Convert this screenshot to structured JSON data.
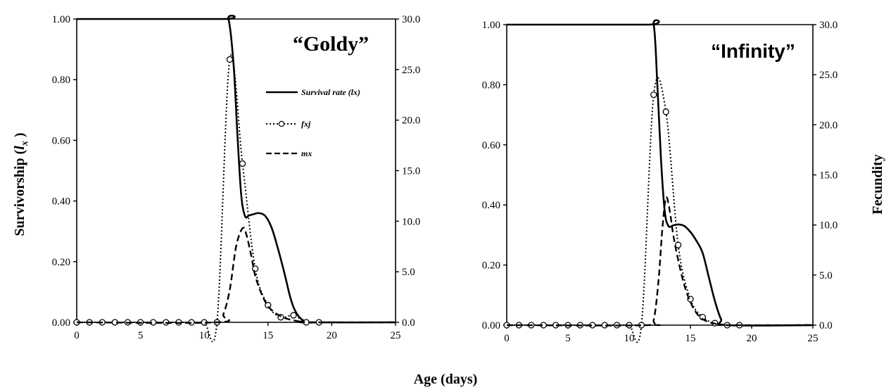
{
  "figure": {
    "xlabel": "Age (days)",
    "ylabel_left_main": "Survivorship (",
    "ylabel_left_sym": "l",
    "ylabel_left_sub": "x",
    "ylabel_left_end": " )",
    "ylabel_right": "Fecundity"
  },
  "legend": {
    "lx": "Survival rate (lx)",
    "fxj": "fxj",
    "mx": "mx"
  },
  "chart_data": [
    {
      "type": "line",
      "title": "“Goldy”",
      "xlim": [
        0,
        25
      ],
      "xticks": [
        "0",
        "5",
        "10",
        "15",
        "20",
        "25"
      ],
      "ylim_left": [
        0,
        1.0
      ],
      "yticks_left": [
        "0.00",
        "0.20",
        "0.40",
        "0.60",
        "0.80",
        "1.00"
      ],
      "ylim_right": [
        0,
        30
      ],
      "yticks_right": [
        "0.0",
        "5.0",
        "10.0",
        "15.0",
        "20.0",
        "25.0",
        "30.0"
      ],
      "series": [
        {
          "name": "Survival rate (lx)",
          "axis": "left",
          "style": "solid",
          "x": [
            0,
            11.4,
            11.9,
            12.3,
            12.6,
            12.9,
            13.2,
            13.5,
            13.9,
            14.3,
            14.8,
            15.3,
            15.8,
            16.3,
            16.7,
            17.0,
            17.4,
            17.8,
            18.0,
            25
          ],
          "y": [
            1.0,
            1.0,
            1.0,
            0.85,
            0.62,
            0.42,
            0.35,
            0.352,
            0.357,
            0.36,
            0.35,
            0.31,
            0.24,
            0.16,
            0.09,
            0.05,
            0.02,
            0.005,
            0.0,
            0.0
          ]
        },
        {
          "name": "fxj",
          "axis": "right",
          "style": "dotted",
          "x": [
            0,
            1,
            2,
            3,
            4,
            5,
            6,
            7,
            8,
            9,
            10,
            11,
            12,
            13,
            14,
            15,
            16,
            17,
            18,
            19
          ],
          "y": [
            0,
            0,
            0,
            0,
            0,
            0,
            0,
            0,
            0,
            0,
            0,
            0,
            26.0,
            15.7,
            5.3,
            1.7,
            0.5,
            0.7,
            0,
            0
          ]
        },
        {
          "name": "mx",
          "axis": "right",
          "style": "dashed",
          "x": [
            0,
            11.0,
            11.5,
            12.0,
            12.5,
            13.0,
            13.3,
            13.7,
            14.0,
            14.5,
            15.0,
            15.5,
            16.0,
            16.5,
            17.0,
            17.5,
            18.0,
            25
          ],
          "y": [
            0,
            0,
            0.8,
            3.2,
            7.5,
            9.3,
            8.7,
            6.5,
            4.6,
            2.8,
            1.6,
            1.0,
            0.6,
            0.35,
            0.2,
            0.08,
            0,
            0
          ]
        }
      ]
    },
    {
      "type": "line",
      "title": "“Infinity”",
      "xlim": [
        0,
        25
      ],
      "xticks": [
        "0",
        "5",
        "10",
        "15",
        "20",
        "25"
      ],
      "ylim_left": [
        0,
        1.0
      ],
      "yticks_left": [
        "0.00",
        "0.20",
        "0.40",
        "0.60",
        "0.80",
        "1.00"
      ],
      "ylim_right": [
        0,
        30
      ],
      "yticks_right": [
        "0.0",
        "5.0",
        "10.0",
        "15.0",
        "20.0",
        "25.0",
        "30.0"
      ],
      "series": [
        {
          "name": "Survival rate (lx)",
          "axis": "left",
          "style": "solid",
          "x": [
            0,
            11.4,
            12.0,
            12.3,
            12.6,
            12.9,
            13.2,
            13.6,
            14.0,
            14.5,
            15.0,
            15.5,
            16.0,
            16.5,
            17.0,
            17.5,
            18.0,
            25
          ],
          "y": [
            1.0,
            1.0,
            1.0,
            0.8,
            0.55,
            0.38,
            0.33,
            0.332,
            0.335,
            0.33,
            0.31,
            0.28,
            0.24,
            0.16,
            0.08,
            0.02,
            0.0,
            0.0
          ]
        },
        {
          "name": "fxj",
          "axis": "right",
          "style": "dotted",
          "x": [
            0,
            1,
            2,
            3,
            4,
            5,
            6,
            7,
            8,
            9,
            10,
            11,
            12,
            13,
            14,
            15,
            16,
            17,
            18,
            19
          ],
          "y": [
            0,
            0,
            0,
            0,
            0,
            0,
            0,
            0,
            0,
            0,
            0,
            0,
            23.0,
            21.3,
            8.0,
            2.6,
            0.8,
            0.2,
            0,
            0
          ]
        },
        {
          "name": "mx",
          "axis": "right",
          "style": "dashed",
          "x": [
            0,
            11.5,
            12.0,
            12.4,
            12.7,
            13.0,
            13.3,
            13.6,
            14.0,
            14.5,
            15.0,
            15.5,
            16.0,
            16.5,
            17.0,
            17.5,
            18.0,
            25
          ],
          "y": [
            0,
            0,
            0.5,
            4.5,
            9.5,
            12.7,
            11.5,
            9.0,
            6.5,
            4.0,
            2.3,
            1.2,
            0.6,
            0.3,
            0.15,
            0.05,
            0,
            0
          ]
        }
      ]
    }
  ]
}
